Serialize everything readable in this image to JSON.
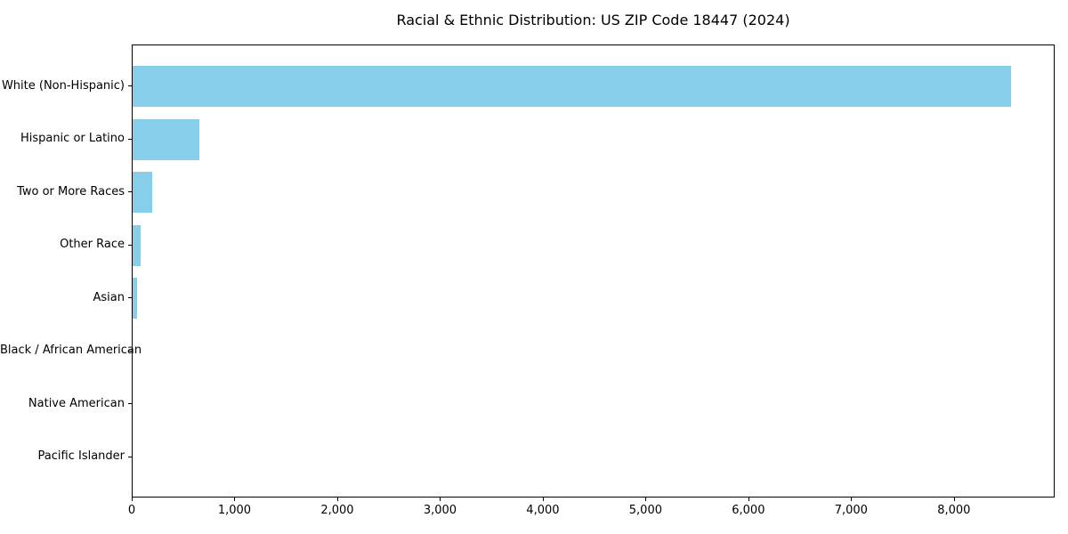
{
  "chart_data": {
    "type": "bar",
    "orientation": "horizontal",
    "title": "Racial & Ethnic Distribution: US ZIP Code 18447 (2024)",
    "categories": [
      "White (Non-Hispanic)",
      "Hispanic or Latino",
      "Two or More Races",
      "Other Race",
      "Asian",
      "Black / African American",
      "Native American",
      "Pacific Islander"
    ],
    "values": [
      8550,
      650,
      190,
      80,
      45,
      0,
      0,
      0
    ],
    "xlabel": "",
    "ylabel": "",
    "xlim": [
      0,
      8980
    ],
    "xticks": [
      0,
      1000,
      2000,
      3000,
      4000,
      5000,
      6000,
      7000,
      8000
    ],
    "xtick_labels": [
      "0",
      "1,000",
      "2,000",
      "3,000",
      "4,000",
      "5,000",
      "6,000",
      "7,000",
      "8,000"
    ],
    "grid": false,
    "legend": null,
    "bar_color": "#87CEEB",
    "colors": {
      "background": "#ffffff",
      "spine": "#000000",
      "text": "#000000"
    }
  }
}
